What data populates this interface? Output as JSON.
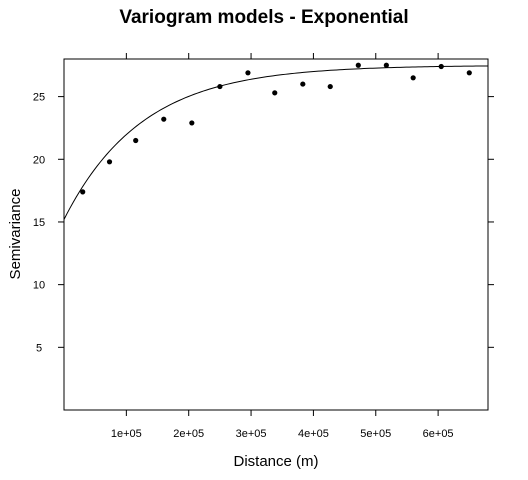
{
  "chart_data": {
    "type": "scatter",
    "title": "Variogram models - Exponential",
    "xlabel": "Distance (m)",
    "ylabel": "Semivariance",
    "xlim": [
      0,
      680000
    ],
    "ylim": [
      0,
      28
    ],
    "x_ticks": [
      {
        "value": 100000,
        "label": "1e+05"
      },
      {
        "value": 200000,
        "label": "2e+05"
      },
      {
        "value": 300000,
        "label": "3e+05"
      },
      {
        "value": 400000,
        "label": "4e+05"
      },
      {
        "value": 500000,
        "label": "5e+05"
      },
      {
        "value": 600000,
        "label": "6e+05"
      }
    ],
    "y_ticks": [
      {
        "value": 5,
        "label": "5"
      },
      {
        "value": 10,
        "label": "10"
      },
      {
        "value": 15,
        "label": "15"
      },
      {
        "value": 20,
        "label": "20"
      },
      {
        "value": 25,
        "label": "25"
      }
    ],
    "series": [
      {
        "kind": "points",
        "x": [
          30000,
          73000,
          115000,
          160000,
          205000,
          250000,
          295000,
          338000,
          383000,
          427000,
          472000,
          517000,
          560000,
          605000,
          650000
        ],
        "y": [
          17.4,
          19.8,
          21.5,
          23.2,
          22.9,
          25.8,
          26.9,
          25.3,
          26.0,
          25.8,
          27.5,
          27.5,
          26.5,
          27.4,
          26.9
        ]
      },
      {
        "kind": "model-line",
        "model": "exponential",
        "nugget": 15.2,
        "psill": 12.3,
        "range": 125000
      }
    ],
    "grid": false,
    "legend": "none"
  }
}
